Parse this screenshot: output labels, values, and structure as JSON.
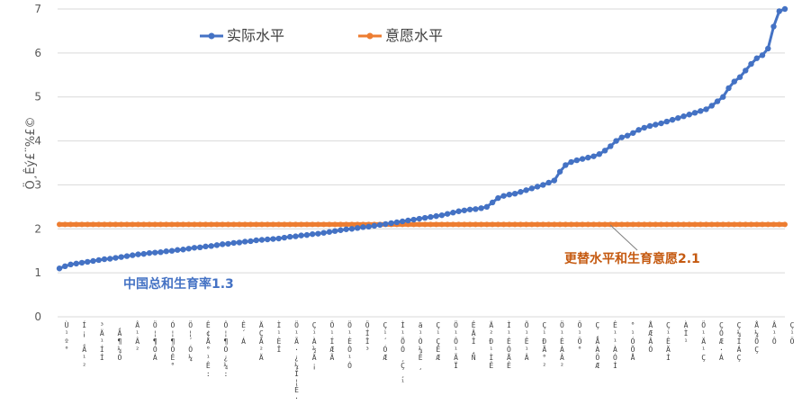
{
  "chart_data": {
    "type": "line",
    "title": "",
    "xlabel": "",
    "ylabel": "Ö¸Êý£¨%£©",
    "ylim": [
      0,
      7
    ],
    "yticks": [
      0,
      1,
      2,
      3,
      4,
      5,
      6,
      7
    ],
    "grid": true,
    "legend": "top-left",
    "x_count": 130,
    "x_tick_labels": [
      "Ù¹º°",
      "Í¡¸Ä¹²",
      "³Ä¹ÍÍ",
      "¸Ä¶¼Ó",
      "Â¹Â²",
      "Ö¦¶ÓÁ",
      "Ó¦¶ÖÊ°",
      "Ö¦´Ó¼",
      "Ê¢Å°¹Ê:",
      "Ô¦¶Ó¿¼:",
      "Ê´Á",
      "ÄÇÃ²Ä",
      "Ì¹ÈÎ",
      "Ö¹Ã·¿¼Î¦É·",
      "Ç¹À½Ä¡",
      "Ö¹ÍÆÃ",
      "Ö¹ÈÒ¹Ó",
      "ÖÍÎ³",
      "Ç¹´ÓÆ",
      "Ì¹ÕÓ¸Ç¸¹",
      "ä¹Ò¼Ê¸",
      "Ç¹ÇÊÆ",
      "Ö¹Ô¹ÃÏ",
      "ÊÂÎ¸Ñ",
      "Ä²Ð¹ÌÊ",
      "Ì¹ÈÓÅÊ",
      "Õ¹Ê¹Â",
      "Ç¹ÐÃ°²",
      "Ö¹ÈÀÂ²",
      "Ö¹Ö°",
      "Ç¸ÅÀÖÆ",
      "Ê¹¹ÀÓÍ",
      "°¹ÓÕÅ",
      "ÅÆÂÓ",
      "Ç¹ÊÄÍ",
      "ÀÌ¹",
      "Ö¹Ä¹Ç",
      "ÇÒÆ·Á",
      "Ç¼ÍÁÇ",
      "Å¼ÕÇ",
      "Â¹Ô",
      "Ç¹Ö"
    ],
    "series": [
      {
        "name": "实际水平",
        "color": "#4472C4",
        "values": [
          1.1,
          1.15,
          1.19,
          1.21,
          1.23,
          1.25,
          1.27,
          1.29,
          1.31,
          1.32,
          1.34,
          1.36,
          1.38,
          1.4,
          1.42,
          1.43,
          1.45,
          1.46,
          1.47,
          1.49,
          1.5,
          1.52,
          1.53,
          1.55,
          1.57,
          1.58,
          1.6,
          1.61,
          1.63,
          1.65,
          1.66,
          1.68,
          1.69,
          1.71,
          1.72,
          1.74,
          1.75,
          1.76,
          1.77,
          1.78,
          1.8,
          1.82,
          1.83,
          1.85,
          1.86,
          1.88,
          1.89,
          1.91,
          1.93,
          1.95,
          1.97,
          1.99,
          2.0,
          2.02,
          2.04,
          2.05,
          2.07,
          2.09,
          2.11,
          2.13,
          2.15,
          2.17,
          2.19,
          2.21,
          2.23,
          2.25,
          2.27,
          2.29,
          2.31,
          2.34,
          2.37,
          2.4,
          2.42,
          2.44,
          2.45,
          2.47,
          2.5,
          2.6,
          2.7,
          2.75,
          2.78,
          2.8,
          2.84,
          2.88,
          2.92,
          2.96,
          3.0,
          3.05,
          3.1,
          3.3,
          3.45,
          3.52,
          3.56,
          3.59,
          3.62,
          3.65,
          3.7,
          3.78,
          3.88,
          4.0,
          4.08,
          4.12,
          4.18,
          4.25,
          4.3,
          4.34,
          4.37,
          4.4,
          4.44,
          4.48,
          4.52,
          4.56,
          4.6,
          4.64,
          4.68,
          4.72,
          4.8,
          4.9,
          5.0,
          5.2,
          5.35,
          5.45,
          5.6,
          5.75,
          5.88,
          5.95,
          6.1,
          6.6,
          6.95,
          7.0
        ]
      },
      {
        "name": "意愿水平",
        "color": "#ED7D31",
        "constant": 2.1
      }
    ],
    "annotations": [
      {
        "text": "中国总和生育率1.3",
        "color": "#4472C4"
      },
      {
        "text": "更替水平和生育意愿2.1",
        "color": "#C55A11"
      }
    ]
  }
}
